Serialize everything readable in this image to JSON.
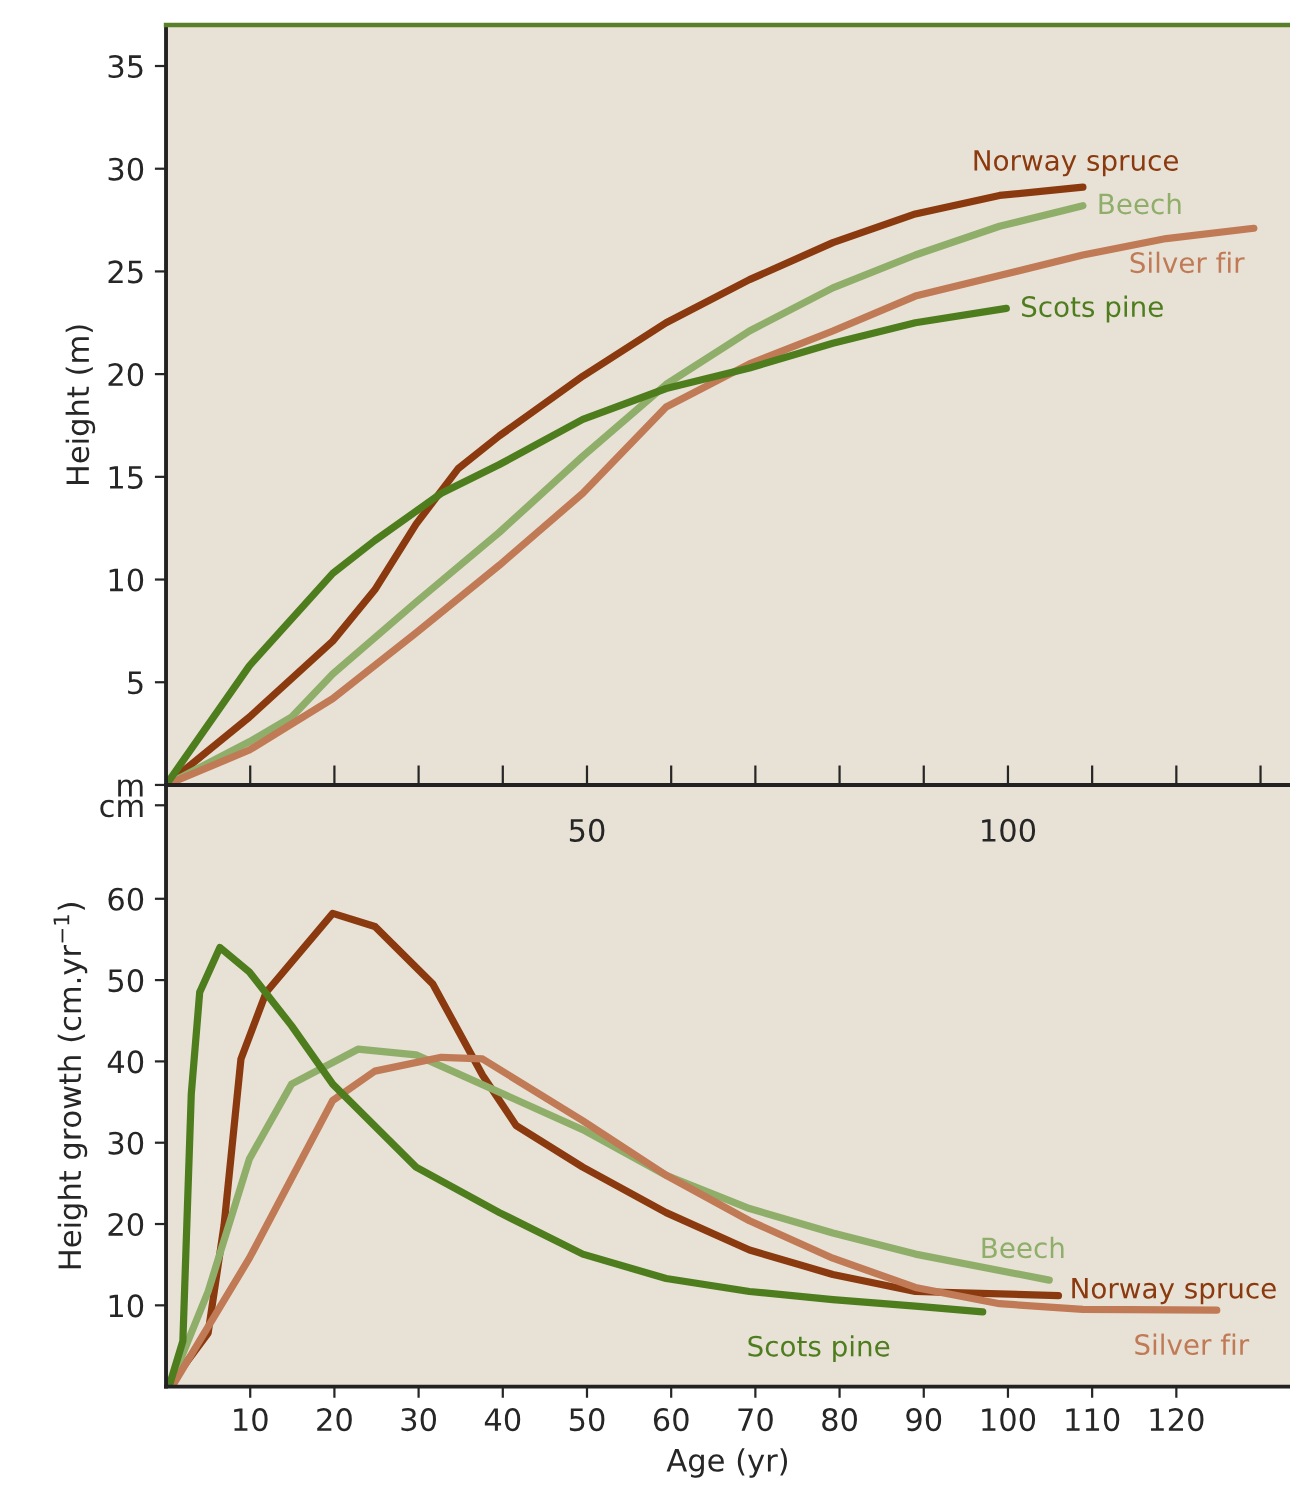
{
  "chart_data": [
    {
      "type": "line",
      "ylabel": "Height (m)",
      "xlim": [
        0,
        133.5
      ],
      "ylim": [
        0,
        37
      ],
      "line_style": "solid",
      "xticks": [
        {
          "value": 10,
          "label": null
        },
        {
          "value": 20,
          "label": null
        },
        {
          "value": 30,
          "label": null
        },
        {
          "value": 40,
          "label": null
        },
        50,
        {
          "value": 60,
          "label": null
        },
        {
          "value": 70,
          "label": null
        },
        {
          "value": 80,
          "label": null
        },
        {
          "value": 90,
          "label": null
        },
        100,
        {
          "value": 110,
          "label": null
        },
        {
          "value": 120,
          "label": null
        },
        {
          "value": 130,
          "label": null
        }
      ],
      "yticks": [
        {
          "value": 0,
          "label": "m"
        },
        5,
        10,
        15,
        20,
        25,
        30,
        35
      ],
      "series": [
        {
          "name": "Norway spruce",
          "color": "#8b3a0f",
          "x": [
            0,
            9.9,
            19.8,
            24.8,
            29.7,
            34.7,
            39.6,
            49.5,
            59.4,
            69.3,
            79.2,
            89,
            99,
            108.9
          ],
          "values": [
            0,
            3.3,
            7.0,
            9.5,
            12.7,
            15.4,
            17.0,
            19.9,
            22.5,
            24.6,
            26.4,
            27.8,
            28.7,
            29.1
          ]
        },
        {
          "name": "Beech",
          "color": "#8fae6a",
          "x": [
            0,
            9.9,
            14.9,
            19.8,
            29.7,
            39.6,
            49.5,
            59.4,
            69.3,
            79.2,
            89,
            99,
            108.9
          ],
          "values": [
            0,
            2.1,
            3.3,
            5.4,
            8.9,
            12.3,
            16.0,
            19.5,
            22.1,
            24.2,
            25.8,
            27.2,
            28.2
          ]
        },
        {
          "name": "Silver fir",
          "color": "#c07a55",
          "x": [
            0,
            9.9,
            19.8,
            29.7,
            39.6,
            49.5,
            59.4,
            69.3,
            79.2,
            89,
            99,
            108.9,
            118.8,
            129.2
          ],
          "values": [
            0,
            1.7,
            4.2,
            7.4,
            10.7,
            14.2,
            18.4,
            20.5,
            22.1,
            23.8,
            24.8,
            25.8,
            26.6,
            27.1
          ]
        },
        {
          "name": "Scots pine",
          "color": "#4e7d1e",
          "x": [
            0,
            9.9,
            19.8,
            24.8,
            32.7,
            39.6,
            49.5,
            59.4,
            69.3,
            79.2,
            89,
            99.8
          ],
          "values": [
            0,
            5.8,
            10.3,
            11.9,
            14.2,
            15.6,
            17.8,
            19.3,
            20.3,
            21.5,
            22.5,
            23.2
          ]
        }
      ]
    },
    {
      "type": "line",
      "xlabel": "Age (yr)",
      "ylabel": "Height growth (cm.yr$^{−1}$)",
      "xlim": [
        0,
        133.5
      ],
      "ylim": [
        0,
        74
      ],
      "line_style": "solid",
      "xticks": [
        10,
        20,
        30,
        40,
        50,
        60,
        70,
        80,
        90,
        100,
        110,
        120
      ],
      "yticks": [
        10,
        20,
        30,
        40,
        50,
        60,
        {
          "value": 71.5,
          "label": "cm"
        }
      ],
      "series": [
        {
          "name": "Norway spruce",
          "color": "#8b3a0f",
          "x": [
            0,
            1,
            5,
            6.9,
            8.9,
            11.9,
            19.8,
            24.8,
            31.7,
            37.6,
            41.6,
            49.5,
            59.4,
            69.3,
            79.2,
            89,
            106
          ],
          "values": [
            0,
            1,
            6.6,
            19.9,
            40.3,
            48.5,
            58.2,
            56.6,
            49.5,
            38.3,
            32.1,
            27,
            21.4,
            16.8,
            13.8,
            11.7,
            11.2
          ]
        },
        {
          "name": "Beech",
          "color": "#8fae6a",
          "x": [
            0,
            1,
            5,
            9.9,
            14.9,
            22.8,
            29.7,
            39.6,
            49.5,
            59.4,
            69.3,
            79.2,
            89,
            104.9
          ],
          "values": [
            0,
            1.5,
            11.7,
            28,
            37.2,
            41.5,
            40.8,
            36.2,
            31.6,
            26,
            21.9,
            18.9,
            16.3,
            13.1
          ]
        },
        {
          "name": "Silver fir",
          "color": "#c07a55",
          "x": [
            0,
            1,
            9.9,
            19.8,
            24.8,
            32.7,
            37.6,
            49.5,
            59.4,
            69.3,
            79.2,
            89,
            99,
            108.9,
            124.8
          ],
          "values": [
            0,
            0.5,
            15.8,
            35.2,
            38.8,
            40.5,
            40.3,
            32.7,
            26,
            20.4,
            15.8,
            12.2,
            10.2,
            9.5,
            9.4
          ]
        },
        {
          "name": "Scots pine",
          "color": "#4e7d1e",
          "x": [
            0,
            0.5,
            2,
            3,
            4,
            6.4,
            9.9,
            14.9,
            19.8,
            29.7,
            39.6,
            49.5,
            59.4,
            69.3,
            79.2,
            89,
            97
          ],
          "values": [
            0,
            0.5,
            5.6,
            36,
            48.5,
            54,
            51,
            44.4,
            37.2,
            27,
            21.4,
            16.3,
            13.3,
            11.7,
            10.7,
            9.9,
            9.2
          ]
        }
      ]
    }
  ]
}
